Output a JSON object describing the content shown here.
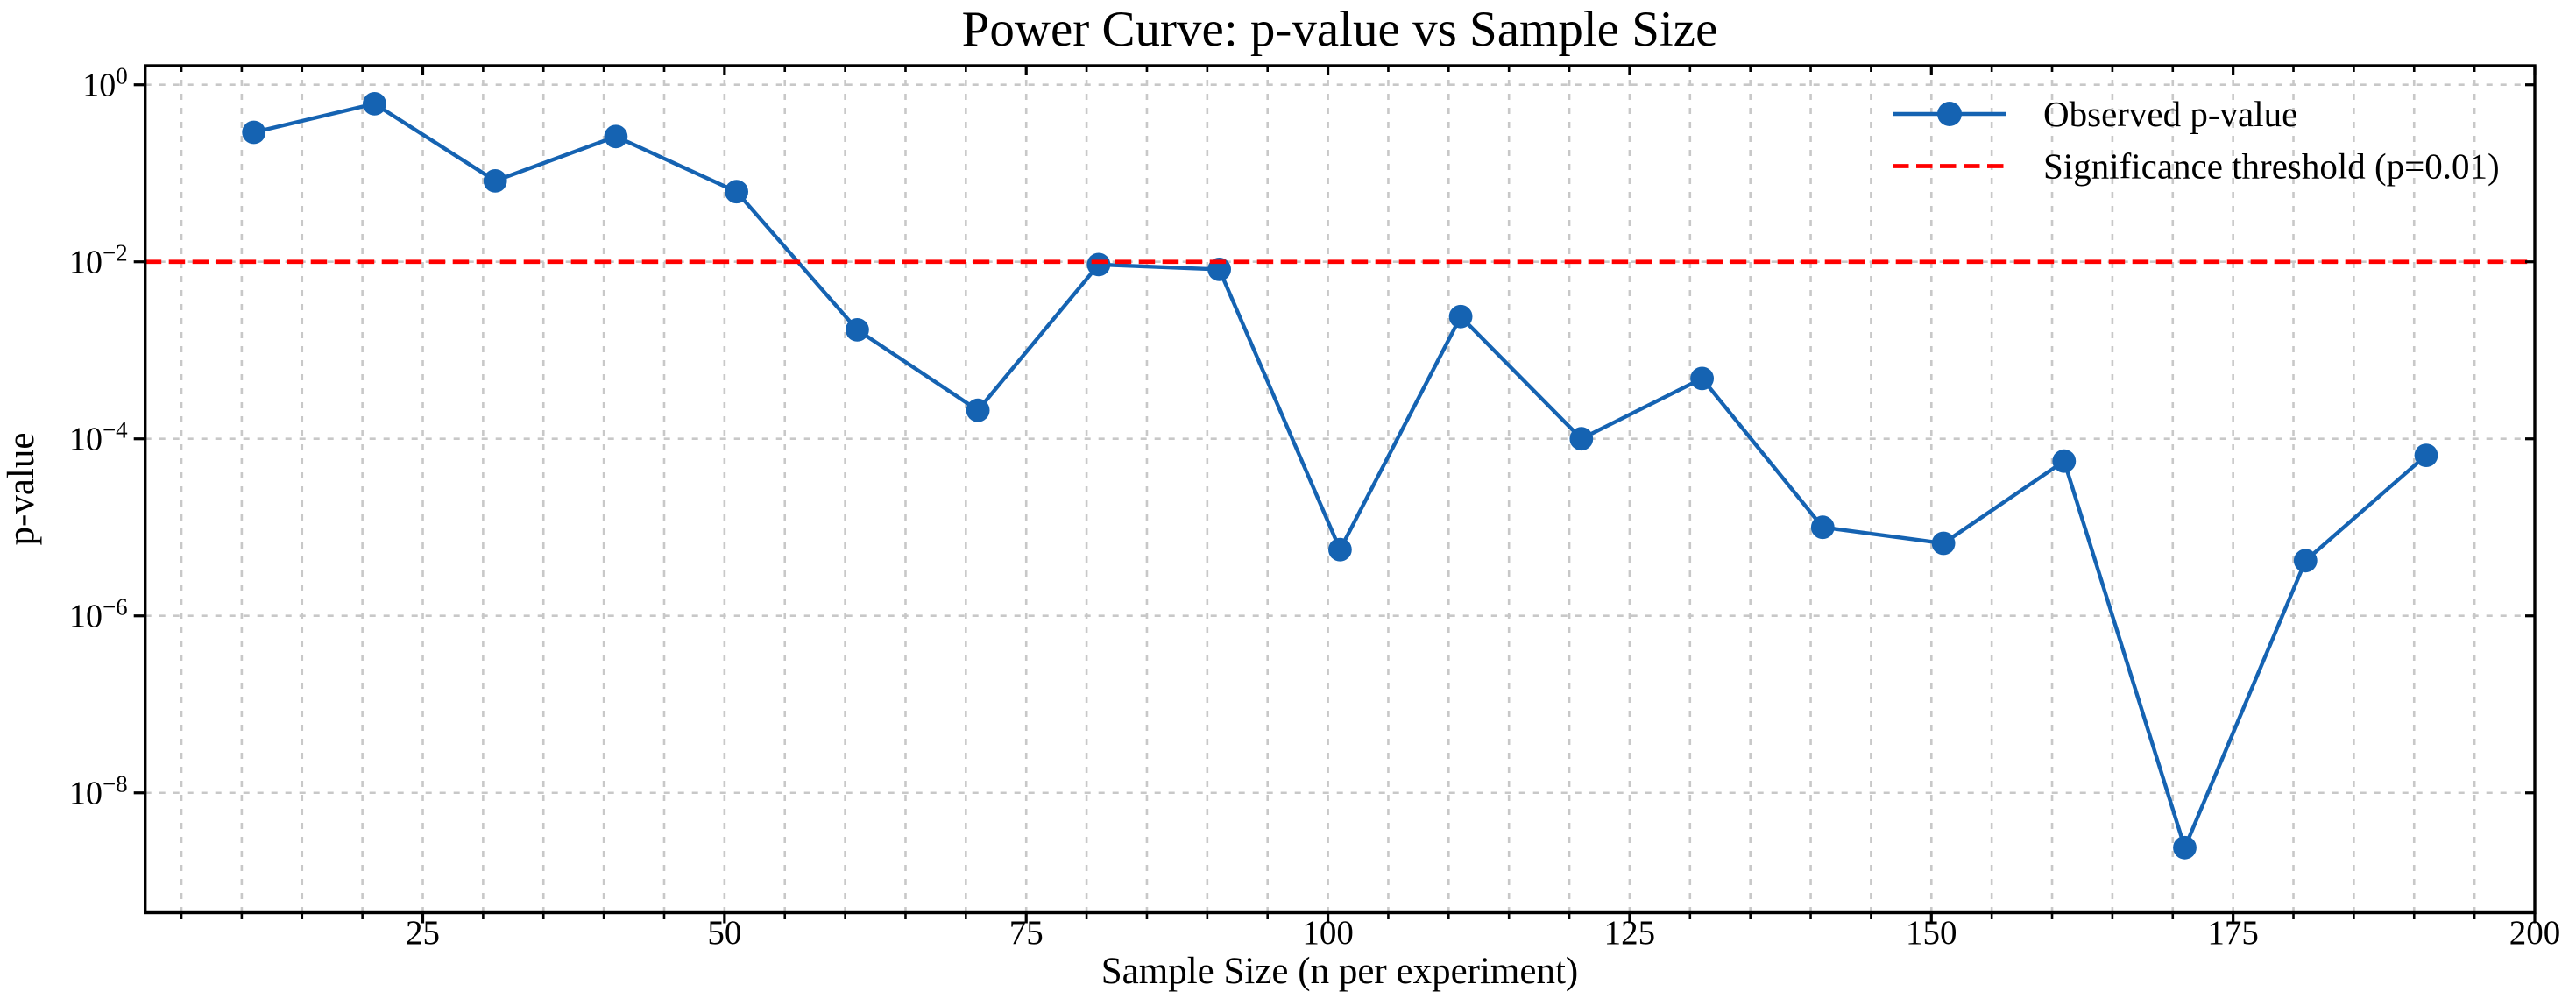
{
  "chart_data": {
    "type": "line",
    "title": "Power Curve: p-value vs Sample Size",
    "xlabel": "Sample Size (n per experiment)",
    "ylabel": "p-value",
    "x": [
      11,
      21,
      31,
      41,
      51,
      61,
      71,
      81,
      91,
      101,
      111,
      121,
      131,
      141,
      151,
      161,
      171,
      181,
      191
    ],
    "series": [
      {
        "name": "Observed p-value",
        "color": "#1563b2",
        "marker": "circle",
        "values": [
          0.29,
          0.61,
          0.082,
          0.26,
          0.062,
          0.0017,
          0.00021,
          0.0093,
          0.0082,
          5.6e-06,
          0.0024,
          0.0001,
          0.00048,
          1e-05,
          6.6e-06,
          5.6e-05,
          2.4e-09,
          4.2e-06,
          6.5e-05
        ]
      }
    ],
    "threshold": {
      "label": "Significance threshold (p=0.01)",
      "value": 0.01,
      "color": "#ff0000",
      "style": "dashed"
    },
    "legend": {
      "items": [
        "Observed p-value",
        "Significance threshold (p=0.01)"
      ],
      "position": "upper right",
      "frame": false
    },
    "x_axis": {
      "lim": [
        2,
        200
      ],
      "major_ticks": [
        25,
        50,
        75,
        100,
        125,
        150,
        175,
        200
      ],
      "tick_labels": [
        "25",
        "50",
        "75",
        "100",
        "125",
        "150",
        "175",
        "200"
      ],
      "minor_step": 5
    },
    "y_axis": {
      "scale": "log",
      "lim_exponents": [
        0.215,
        -9.354
      ],
      "major_tick_exponents": [
        0,
        -2,
        -4,
        -6,
        -8
      ],
      "tick_labels": [
        "10⁰",
        "10⁻²",
        "10⁻⁴",
        "10⁻⁶",
        "10⁻⁸"
      ]
    },
    "grid": {
      "show": true,
      "color": "#c8c8c8",
      "style": "dashed"
    },
    "colors": {
      "axes": "#000000",
      "background": "#ffffff",
      "text": "#000000"
    }
  }
}
